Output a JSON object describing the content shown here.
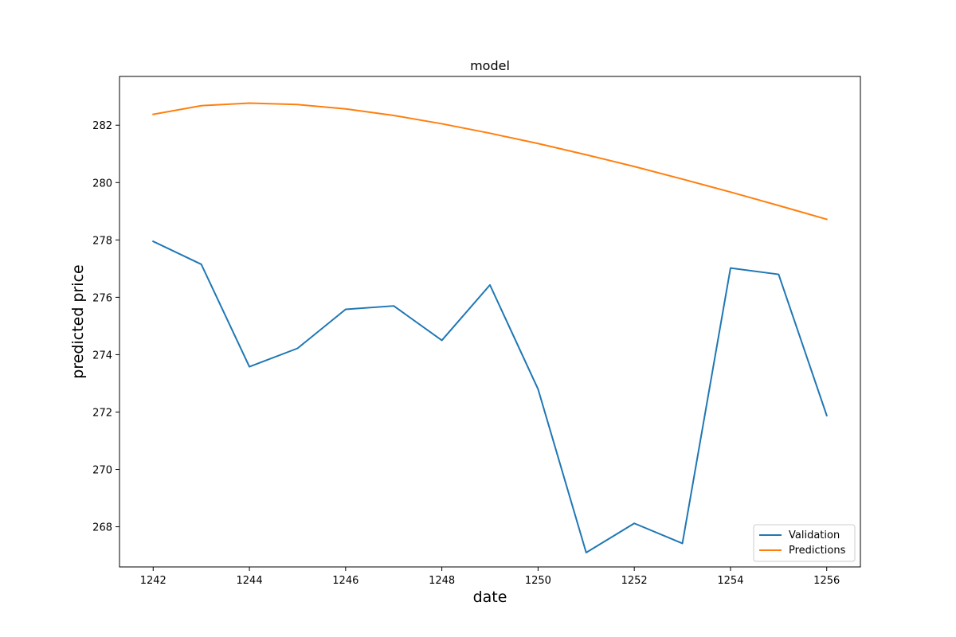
{
  "chart_data": {
    "type": "line",
    "title": "model",
    "xlabel": "date",
    "ylabel": "predicted price",
    "xlim": [
      1241.3,
      1256.7
    ],
    "ylim": [
      266.6,
      283.7
    ],
    "xticks": [
      1242,
      1244,
      1246,
      1248,
      1250,
      1252,
      1254,
      1256
    ],
    "xtick_labels": [
      "1242",
      "1244",
      "1246",
      "1248",
      "1250",
      "1252",
      "1254",
      "1256"
    ],
    "yticks": [
      268,
      270,
      272,
      274,
      276,
      278,
      280,
      282
    ],
    "ytick_labels": [
      "268",
      "270",
      "272",
      "274",
      "276",
      "278",
      "280",
      "282"
    ],
    "grid": false,
    "legend_position": "lower-right",
    "x": [
      1242,
      1243,
      1244,
      1245,
      1246,
      1247,
      1248,
      1249,
      1250,
      1251,
      1252,
      1253,
      1254,
      1255,
      1256
    ],
    "series": [
      {
        "name": "Validation",
        "color": "#1f77b4",
        "values": [
          277.95,
          277.15,
          273.58,
          274.22,
          275.58,
          275.7,
          274.5,
          276.43,
          272.8,
          267.1,
          268.12,
          267.42,
          277.02,
          276.8,
          271.88
        ]
      },
      {
        "name": "Predictions",
        "color": "#ff7f0e",
        "values": [
          282.38,
          282.68,
          282.77,
          282.72,
          282.57,
          282.34,
          282.05,
          281.72,
          281.36,
          280.97,
          280.56,
          280.12,
          279.67,
          279.2,
          278.72
        ]
      }
    ]
  }
}
